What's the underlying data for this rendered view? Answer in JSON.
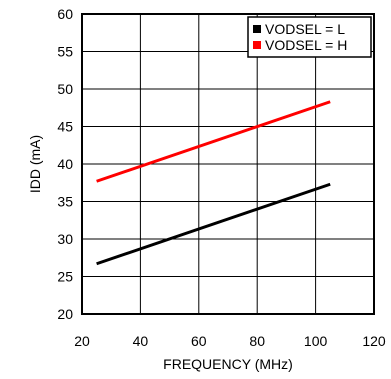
{
  "chart_data": {
    "type": "line",
    "xlabel": "FREQUENCY (MHz)",
    "ylabel": "IDD (mA)",
    "xlim": [
      20,
      120
    ],
    "ylim": [
      20,
      60
    ],
    "xticks": [
      20,
      40,
      60,
      80,
      100,
      120
    ],
    "yticks": [
      20,
      25,
      30,
      35,
      40,
      45,
      50,
      55,
      60
    ],
    "grid": true,
    "legend_position": "top-right",
    "series": [
      {
        "name": "VODSEL = L",
        "color": "#000000",
        "x": [
          25,
          105
        ],
        "y": [
          26.7,
          37.3
        ]
      },
      {
        "name": "VODSEL = H",
        "color": "#ff0000",
        "x": [
          25,
          105
        ],
        "y": [
          37.7,
          48.3
        ]
      }
    ]
  }
}
